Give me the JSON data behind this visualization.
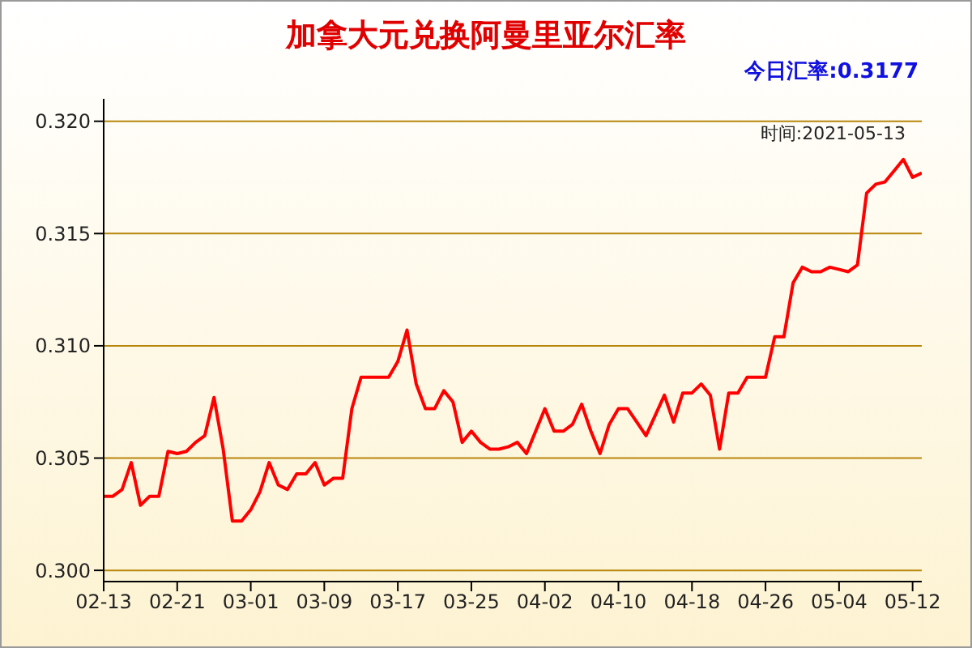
{
  "chart_data": {
    "type": "line",
    "title": "加拿大元兑换阿曼里亚尔汇率",
    "subtitle": "今日汇率:0.3177",
    "annotations": [
      "时间:2021-05-13"
    ],
    "x": [
      "--02-13",
      "--02-14",
      "--02-15",
      "--02-16",
      "--02-17",
      "--02-18",
      "--02-19",
      "--02-20",
      "--02-21",
      "--02-22",
      "--02-23",
      "--02-24",
      "--02-25",
      "--02-26",
      "--02-27",
      "--02-28",
      "--03-01",
      "--03-02",
      "--03-03",
      "--03-04",
      "--03-05",
      "--03-06",
      "--03-07",
      "--03-08",
      "--03-09",
      "--03-10",
      "--03-11",
      "--03-12",
      "--03-13",
      "--03-14",
      "--03-15",
      "--03-16",
      "--03-17",
      "--03-18",
      "--03-19",
      "--03-20",
      "--03-21",
      "--03-22",
      "--03-23",
      "--03-24",
      "--03-25",
      "--03-26",
      "--03-27",
      "--03-28",
      "--03-29",
      "--03-30",
      "--03-31",
      "--04-01",
      "--04-02",
      "--04-03",
      "--04-04",
      "--04-05",
      "--04-06",
      "--04-07",
      "--04-08",
      "--04-09",
      "--04-10",
      "--04-11",
      "--04-12",
      "--04-13",
      "--04-14",
      "--04-15",
      "--04-16",
      "--04-17",
      "--04-18",
      "--04-19",
      "--04-20",
      "--04-21",
      "--04-22",
      "--04-23",
      "--04-24",
      "--04-25",
      "--04-26",
      "--04-27",
      "--04-28",
      "--04-29",
      "--04-30",
      "--05-01",
      "--05-02",
      "--05-03",
      "--05-04",
      "--05-05",
      "--05-06",
      "--05-07",
      "--05-08",
      "--05-09",
      "--05-10",
      "--05-11",
      "--05-12",
      "--05-13"
    ],
    "series": [
      {
        "color": "#ff0000",
        "values": [
          0.3033,
          0.3033,
          0.3036,
          0.3048,
          0.3029,
          0.3033,
          0.3033,
          0.3053,
          0.3052,
          0.3053,
          0.3057,
          0.306,
          0.3077,
          0.3054,
          0.3022,
          0.3022,
          0.3027,
          0.3035,
          0.3048,
          0.3038,
          0.3036,
          0.3043,
          0.3043,
          0.3048,
          0.3038,
          0.3041,
          0.3041,
          0.3072,
          0.3086,
          0.3086,
          0.3086,
          0.3086,
          0.3093,
          0.3107,
          0.3083,
          0.3072,
          0.3072,
          0.308,
          0.3075,
          0.3057,
          0.3062,
          0.3057,
          0.3054,
          0.3054,
          0.3055,
          0.3057,
          0.3052,
          0.3062,
          0.3072,
          0.3062,
          0.3062,
          0.3065,
          0.3074,
          0.3062,
          0.3052,
          0.3065,
          0.3072,
          0.3072,
          0.3066,
          0.306,
          0.3069,
          0.3078,
          0.3066,
          0.3079,
          0.3079,
          0.3083,
          0.3078,
          0.3054,
          0.3079,
          0.3079,
          0.3086,
          0.3086,
          0.3086,
          0.3104,
          0.3104,
          0.3128,
          0.3135,
          0.3133,
          0.3133,
          0.3135,
          0.3134,
          0.3133,
          0.3136,
          0.3168,
          0.3172,
          0.3173,
          0.3178,
          0.3183,
          0.3175,
          0.3177
        ]
      }
    ],
    "xlim": [
      "--02-13",
      "--05-13"
    ],
    "xticks": [
      {
        "value": "--02-13",
        "label": "02-13"
      },
      {
        "value": "--02-21",
        "label": "02-21"
      },
      {
        "value": "--03-01",
        "label": "03-01"
      },
      {
        "value": "--03-09",
        "label": "03-09"
      },
      {
        "value": "--03-17",
        "label": "03-17"
      },
      {
        "value": "--03-25",
        "label": "03-25"
      },
      {
        "value": "--04-02",
        "label": "04-02"
      },
      {
        "value": "--04-10",
        "label": "04-10"
      },
      {
        "value": "--04-18",
        "label": "04-18"
      },
      {
        "value": "--04-26",
        "label": "04-26"
      },
      {
        "value": "--05-04",
        "label": "05-04"
      },
      {
        "value": "--05-12",
        "label": "05-12"
      }
    ],
    "ylim": [
      0.2995,
      0.321
    ],
    "yticks": [
      {
        "value": 0.3,
        "label": "0.300"
      },
      {
        "value": 0.305,
        "label": "0.305"
      },
      {
        "value": 0.31,
        "label": "0.310"
      },
      {
        "value": 0.315,
        "label": "0.315"
      },
      {
        "value": 0.32,
        "label": "0.320"
      }
    ],
    "grid": "y",
    "legend": false,
    "marker": "none",
    "line_style": "solid"
  }
}
